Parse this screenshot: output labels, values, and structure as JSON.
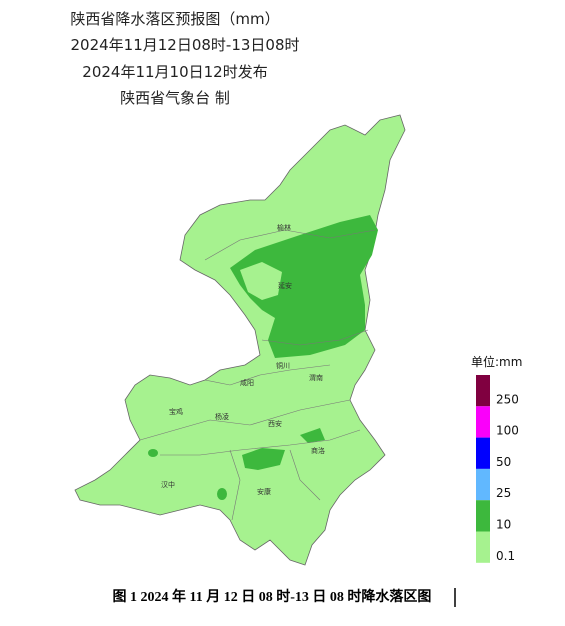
{
  "header": {
    "title": "陕西省降水落区预报图（mm）",
    "period": "2024年11月12日08时-13日08时",
    "issued": "2024年11月10日12时发布",
    "issuer": "陕西省气象台 制"
  },
  "cities": [
    "榆林",
    "延安",
    "铜川",
    "渭南",
    "咸阳",
    "宝鸡",
    "杨凌",
    "西安",
    "商洛",
    "汉中",
    "安康"
  ],
  "legend": {
    "title": "单位:mm",
    "items": [
      {
        "label": "250",
        "color": "#800040"
      },
      {
        "label": "100",
        "color": "#fa00fa"
      },
      {
        "label": "50",
        "color": "#0000fe"
      },
      {
        "label": "25",
        "color": "#61b8ff"
      },
      {
        "label": "10",
        "color": "#3db83d"
      },
      {
        "label": "0.1",
        "color": "#a6f28f"
      }
    ]
  },
  "caption": "图 1 2024 年 11 月 12 日 08 时-13 日 08 时降水落区图"
}
